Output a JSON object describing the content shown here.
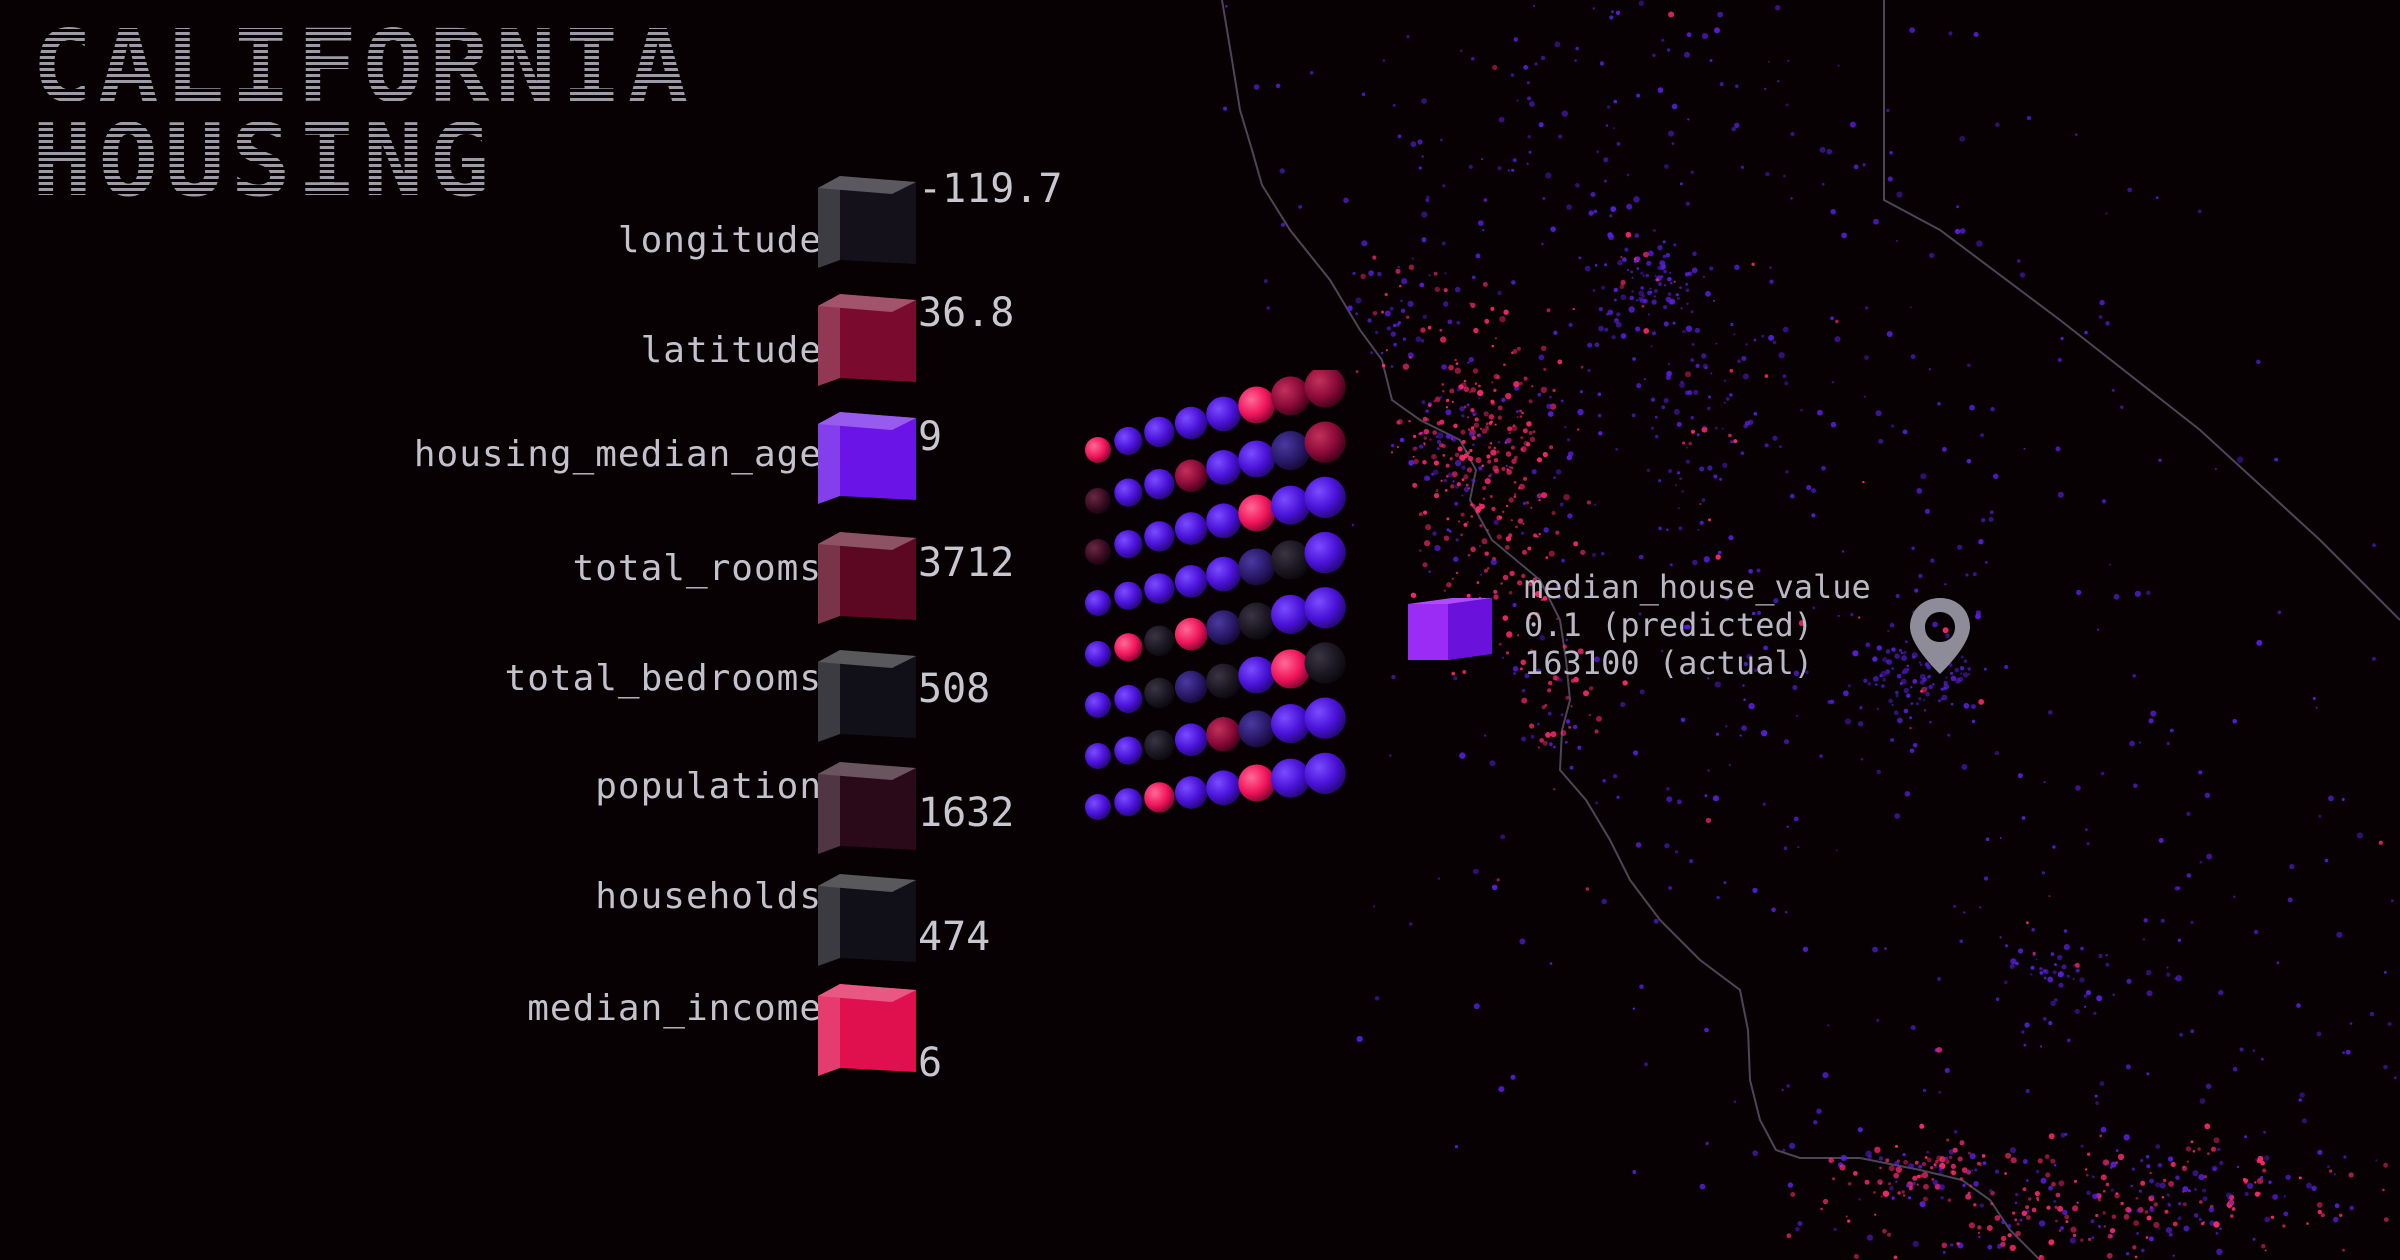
{
  "title": {
    "line1": "CALIFORNIA",
    "line2": "HOUSING"
  },
  "features": [
    {
      "name": "longitude",
      "value": "-119.7",
      "color": "#14111a"
    },
    {
      "name": "latitude",
      "value": "36.8",
      "color": "#7a0b2e"
    },
    {
      "name": "housing_median_age",
      "value": "9",
      "color": "#6a14e8"
    },
    {
      "name": "total_rooms",
      "value": "3712",
      "color": "#5c0822"
    },
    {
      "name": "total_bedrooms",
      "value": "508",
      "color": "#111018"
    },
    {
      "name": "population",
      "value": "1632",
      "color": "#2a0a18"
    },
    {
      "name": "households",
      "value": "474",
      "color": "#111018"
    },
    {
      "name": "median_income",
      "value": "6",
      "color": "#e0104e"
    }
  ],
  "output": {
    "name": "median_house_value",
    "predicted": "0.1 (predicted)",
    "actual": "163100 (actual)",
    "color": "#8a22f0"
  },
  "colors": {
    "background": "#070104",
    "accent_pink": "#ff2a6d",
    "accent_purple": "#5a1fe0",
    "border_line": "#4a4656"
  },
  "icons": {
    "marker": "map-pin-icon"
  }
}
